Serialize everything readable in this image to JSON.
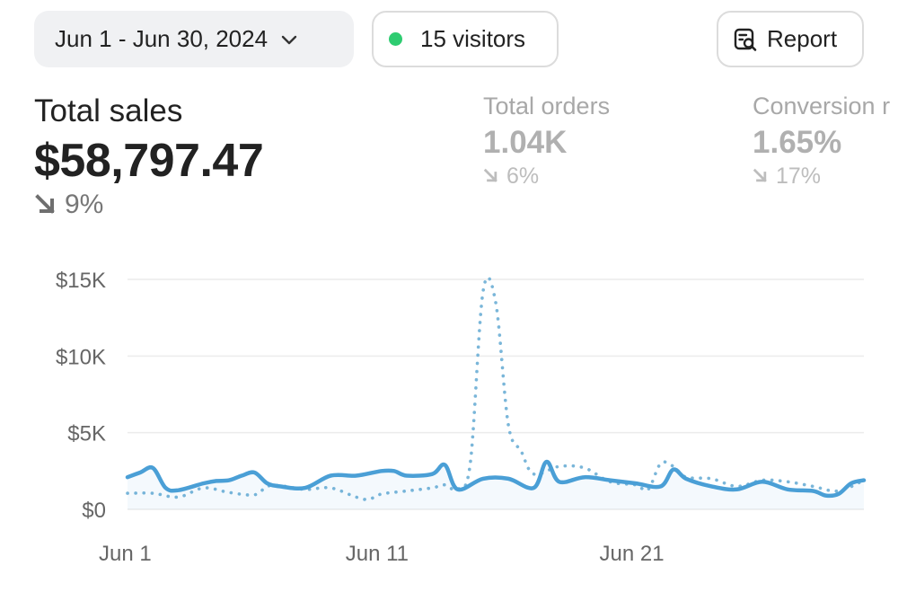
{
  "filters": {
    "date_range": "Jun 1 - Jun 30, 2024",
    "visitors": "15 visitors",
    "report_label": "Report"
  },
  "metrics": {
    "total_sales": {
      "label": "Total sales",
      "value": "$58,797.47",
      "change": "9%"
    },
    "total_orders": {
      "label": "Total orders",
      "value": "1.04K",
      "change": "6%"
    },
    "conversion": {
      "label": "Conversion r",
      "value": "1.65%",
      "change": "17%"
    }
  },
  "colors": {
    "current": "#4a9fd6",
    "previous": "#7ab6d9",
    "live_dot": "#2ecc71"
  },
  "chart_data": {
    "type": "line",
    "y_tick_labels": [
      "$0",
      "$5K",
      "$10K",
      "$15K"
    ],
    "y_ticks": [
      0,
      5000,
      10000,
      15000
    ],
    "ylim": [
      0,
      15000
    ],
    "x_tick_labels": [
      "Jun 1",
      "Jun 11",
      "Jun 21"
    ],
    "x_tick_days": [
      1,
      11,
      21
    ],
    "xlim": [
      1,
      30
    ],
    "series": [
      {
        "style": "solid",
        "x": [
          1,
          1.5,
          2,
          2.5,
          3,
          4,
          4.5,
          5,
          5.5,
          6,
          6.5,
          7,
          8,
          9,
          10,
          11,
          11.5,
          12,
          13,
          13.5,
          14,
          15,
          16,
          17,
          17.5,
          18,
          19,
          20,
          21,
          22,
          22.5,
          23,
          24,
          25,
          26,
          27,
          28,
          28.5,
          29,
          29.5,
          30
        ],
        "values": [
          2100,
          2400,
          2700,
          1400,
          1250,
          1700,
          1850,
          1900,
          2200,
          2400,
          1700,
          1500,
          1400,
          2200,
          2200,
          2500,
          2500,
          2200,
          2300,
          2900,
          1300,
          2000,
          2000,
          1400,
          3100,
          1800,
          2100,
          1900,
          1700,
          1500,
          2600,
          2000,
          1500,
          1300,
          1800,
          1300,
          1200,
          900,
          1000,
          1700,
          1900
        ]
      },
      {
        "style": "dotted",
        "x": [
          1,
          2,
          3,
          4,
          5,
          6,
          6.5,
          7,
          8,
          9,
          10,
          10.5,
          11,
          12,
          13,
          13.5,
          14,
          14.5,
          15,
          15.5,
          16,
          16.5,
          17,
          18,
          19,
          20,
          21,
          21.5,
          22,
          22.5,
          23,
          24,
          25,
          26,
          27,
          28,
          29,
          30
        ],
        "values": [
          1050,
          1050,
          800,
          1400,
          1100,
          950,
          1500,
          1550,
          1300,
          1400,
          800,
          650,
          1000,
          1200,
          1400,
          1600,
          1300,
          3000,
          14200,
          13500,
          5500,
          3800,
          2300,
          2800,
          2700,
          1800,
          1600,
          1300,
          3000,
          2800,
          2100,
          2000,
          1500,
          1900,
          1800,
          1500,
          1200,
          1900
        ]
      }
    ]
  }
}
